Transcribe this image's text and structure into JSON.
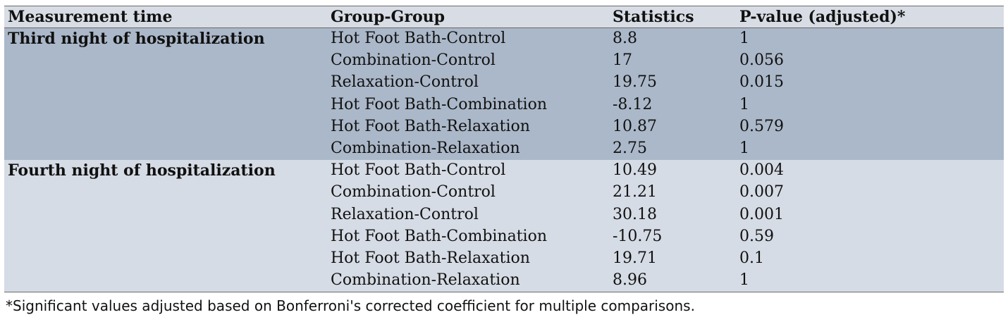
{
  "table": {
    "headers": {
      "measurement_time": "Measurement time",
      "group_group": "Group-Group",
      "statistics": "Statistics",
      "p_value": "P-value (adjusted)*"
    },
    "groups": [
      {
        "label": "Third night of hospitalization",
        "rows": [
          {
            "pair": "Hot Foot Bath-Control",
            "stat": "8.8",
            "p": "1"
          },
          {
            "pair": "Combination-Control",
            "stat": "17",
            "p": "0.056"
          },
          {
            "pair": "Relaxation-Control",
            "stat": "19.75",
            "p": "0.015"
          },
          {
            "pair": "Hot Foot Bath-Combination",
            "stat": "-8.12",
            "p": "1"
          },
          {
            "pair": "Hot Foot Bath-Relaxation",
            "stat": "10.87",
            "p": "0.579"
          },
          {
            "pair": "Combination-Relaxation",
            "stat": "2.75",
            "p": "1"
          }
        ]
      },
      {
        "label": "Fourth night of hospitalization",
        "rows": [
          {
            "pair": "Hot Foot Bath-Control",
            "stat": "10.49",
            "p": "0.004"
          },
          {
            "pair": "Combination-Control",
            "stat": "21.21",
            "p": "0.007"
          },
          {
            "pair": "Relaxation-Control",
            "stat": "30.18",
            "p": "0.001"
          },
          {
            "pair": "Hot Foot Bath-Combination",
            "stat": "-10.75",
            "p": "0.59"
          },
          {
            "pair": "Hot Foot Bath-Relaxation",
            "stat": "19.71",
            "p": "0.1"
          },
          {
            "pair": "Combination-Relaxation",
            "stat": "8.96",
            "p": "1"
          }
        ]
      }
    ]
  },
  "footnote": "*Significant values adjusted based on Bonferroni's corrected coefficient for multiple comparisons.",
  "colors": {
    "header_bg": "#d8dde5",
    "third_night_bg": "#abb8c9",
    "fourth_night_bg": "#d6dce5"
  }
}
